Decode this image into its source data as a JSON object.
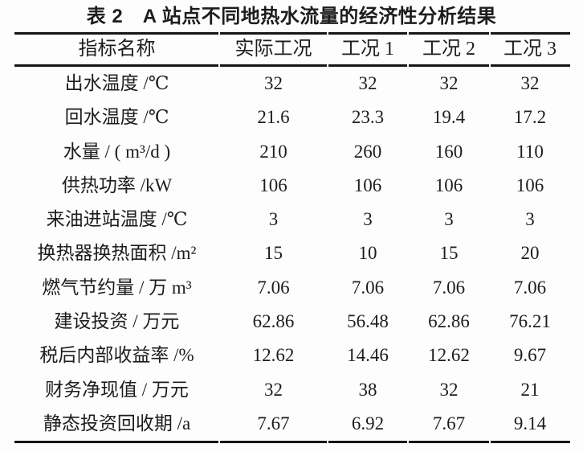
{
  "page": {
    "background_color": "#fdfdfd",
    "text_color": "#1d1d1d",
    "rule_color": "#161616"
  },
  "table": {
    "title": "表 2　A 站点不同地热水流量的经济性分析结果",
    "header": [
      "指标名称",
      "实际工况",
      "工况 1",
      "工况 2",
      "工况 3"
    ],
    "rows": [
      {
        "label": "出水温度 /℃",
        "values": [
          "32",
          "32",
          "32",
          "32"
        ]
      },
      {
        "label": "回水温度 /℃",
        "values": [
          "21.6",
          "23.3",
          "19.4",
          "17.2"
        ]
      },
      {
        "label": "水量 / ( m³/d )",
        "values": [
          "210",
          "260",
          "160",
          "110"
        ]
      },
      {
        "label": "供热功率 /kW",
        "values": [
          "106",
          "106",
          "106",
          "106"
        ]
      },
      {
        "label": "来油进站温度 /℃",
        "values": [
          "3",
          "3",
          "3",
          "3"
        ]
      },
      {
        "label": "换热器换热面积 /m²",
        "values": [
          "15",
          "10",
          "15",
          "20"
        ]
      },
      {
        "label": "燃气节约量 / 万 m³",
        "values": [
          "7.06",
          "7.06",
          "7.06",
          "7.06"
        ]
      },
      {
        "label": "建设投资 / 万元",
        "values": [
          "62.86",
          "56.48",
          "62.86",
          "76.21"
        ]
      },
      {
        "label": "税后内部收益率 /%",
        "values": [
          "12.62",
          "14.46",
          "12.62",
          "9.67"
        ]
      },
      {
        "label": "财务净现值 / 万元",
        "values": [
          "32",
          "38",
          "32",
          "21"
        ]
      },
      {
        "label": "静态投资回收期 /a",
        "values": [
          "7.67",
          "6.92",
          "7.67",
          "9.14"
        ]
      }
    ]
  }
}
